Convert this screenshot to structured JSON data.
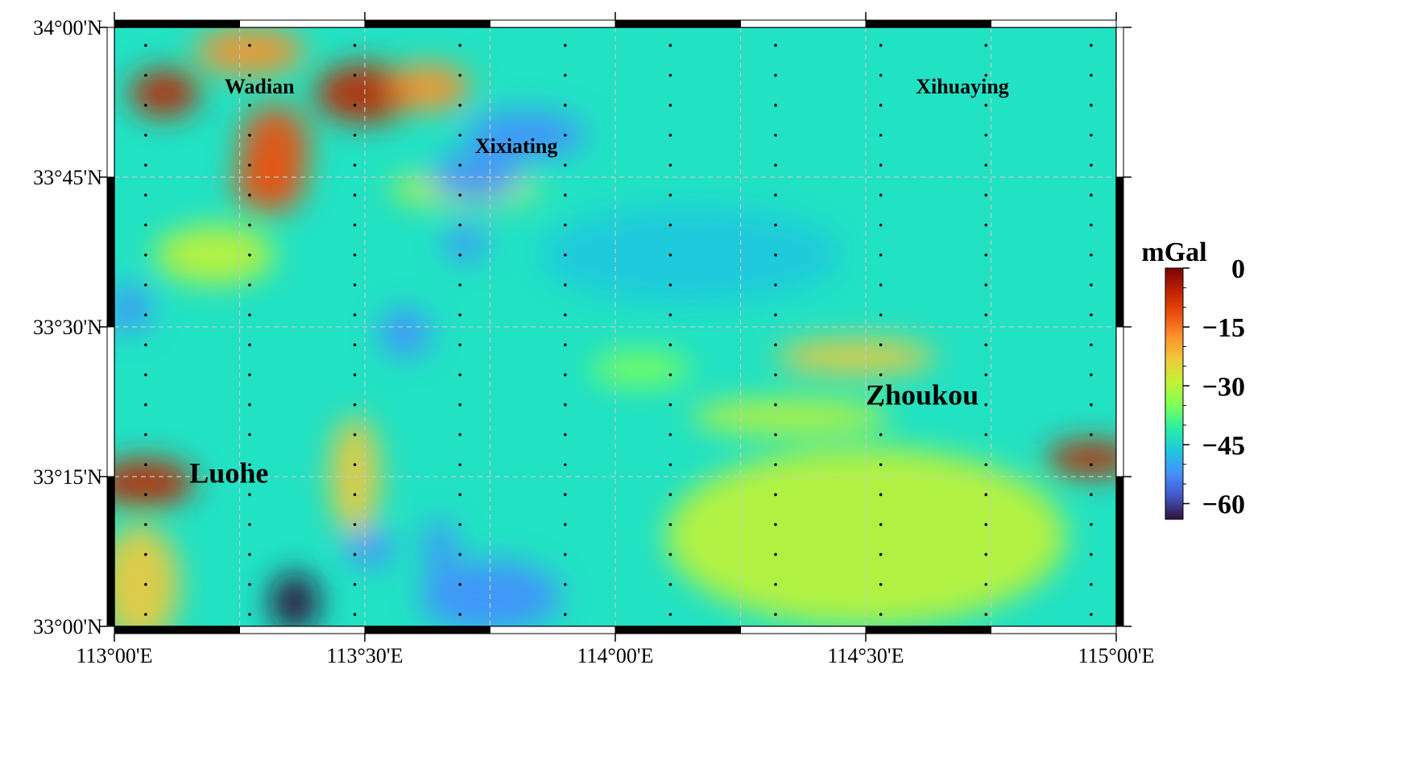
{
  "map": {
    "lon_range": [
      113.0,
      115.0
    ],
    "lat_range": [
      33.0,
      34.0
    ],
    "x_ticks": [
      {
        "lon": 113.0,
        "label": "113°00'E"
      },
      {
        "lon": 113.5,
        "label": "113°30'E"
      },
      {
        "lon": 114.0,
        "label": "114°00'E"
      },
      {
        "lon": 114.5,
        "label": "114°30'E"
      },
      {
        "lon": 115.0,
        "label": "115°00'E"
      }
    ],
    "y_ticks": [
      {
        "lat": 33.0,
        "label": "33°00'N"
      },
      {
        "lat": 33.25,
        "label": "33°15'N"
      },
      {
        "lat": 33.5,
        "label": "33°30'N"
      },
      {
        "lat": 33.75,
        "label": "33°45'N"
      },
      {
        "lat": 34.0,
        "label": "34°00'N"
      }
    ],
    "gridlines": true,
    "station_lons": [
      113.0625,
      113.27,
      113.48,
      113.69,
      113.9,
      114.11,
      114.32,
      114.53,
      114.74,
      114.95
    ],
    "station_lats": [
      33.02,
      33.07,
      33.12,
      33.17,
      33.22,
      33.27,
      33.32,
      33.37,
      33.42,
      33.47,
      33.52,
      33.57,
      33.62,
      33.67,
      33.72,
      33.77,
      33.82,
      33.87,
      33.92,
      33.97
    ]
  },
  "places": [
    {
      "name": "Wadian",
      "lon": 113.22,
      "lat": 33.89,
      "size": "small"
    },
    {
      "name": "Xixiating",
      "lon": 113.72,
      "lat": 33.79,
      "size": "small"
    },
    {
      "name": "Xihuaying",
      "lon": 114.6,
      "lat": 33.89,
      "size": "small"
    },
    {
      "name": "Zhoukou",
      "lon": 114.5,
      "lat": 33.37,
      "size": "large"
    },
    {
      "name": "Luohe",
      "lon": 113.15,
      "lat": 33.24,
      "size": "large"
    }
  ],
  "anomalies": [
    {
      "lon": 113.1,
      "lat": 33.89,
      "rlon": 0.07,
      "rlat": 0.04,
      "value": -8
    },
    {
      "lon": 113.27,
      "lat": 33.96,
      "rlon": 0.11,
      "rlat": 0.04,
      "value": -20
    },
    {
      "lon": 113.32,
      "lat": 33.8,
      "rlon": 0.07,
      "rlat": 0.07,
      "value": -10
    },
    {
      "lon": 113.31,
      "lat": 33.74,
      "rlon": 0.07,
      "rlat": 0.05,
      "value": -14
    },
    {
      "lon": 113.5,
      "lat": 33.89,
      "rlon": 0.1,
      "rlat": 0.05,
      "value": -6
    },
    {
      "lon": 113.63,
      "lat": 33.9,
      "rlon": 0.08,
      "rlat": 0.04,
      "value": -20
    },
    {
      "lon": 113.7,
      "lat": 33.73,
      "rlon": 0.15,
      "rlat": 0.03,
      "value": -28
    },
    {
      "lon": 113.2,
      "lat": 33.62,
      "rlon": 0.12,
      "rlat": 0.05,
      "value": -28
    },
    {
      "lon": 113.72,
      "lat": 33.75,
      "rlon": 0.09,
      "rlat": 0.04,
      "value": -55
    },
    {
      "lon": 113.82,
      "lat": 33.82,
      "rlon": 0.12,
      "rlat": 0.04,
      "value": -50
    },
    {
      "lon": 113.7,
      "lat": 33.64,
      "rlon": 0.04,
      "rlat": 0.03,
      "value": -55
    },
    {
      "lon": 113.58,
      "lat": 33.49,
      "rlon": 0.05,
      "rlat": 0.04,
      "value": -53
    },
    {
      "lon": 113.03,
      "lat": 33.53,
      "rlon": 0.04,
      "rlat": 0.04,
      "value": -50
    },
    {
      "lon": 113.06,
      "lat": 33.24,
      "rlon": 0.1,
      "rlat": 0.04,
      "value": -4
    },
    {
      "lon": 113.05,
      "lat": 33.07,
      "rlon": 0.08,
      "rlat": 0.1,
      "value": -24
    },
    {
      "lon": 113.48,
      "lat": 33.25,
      "rlon": 0.05,
      "rlat": 0.1,
      "value": -23
    },
    {
      "lon": 113.36,
      "lat": 33.04,
      "rlon": 0.05,
      "rlat": 0.05,
      "value": -62
    },
    {
      "lon": 113.51,
      "lat": 33.13,
      "rlon": 0.05,
      "rlat": 0.03,
      "value": -55
    },
    {
      "lon": 113.65,
      "lat": 33.13,
      "rlon": 0.03,
      "rlat": 0.05,
      "value": -55
    },
    {
      "lon": 113.75,
      "lat": 33.05,
      "rlon": 0.14,
      "rlat": 0.06,
      "value": -54
    },
    {
      "lon": 114.48,
      "lat": 33.45,
      "rlon": 0.16,
      "rlat": 0.03,
      "value": -22
    },
    {
      "lon": 114.35,
      "lat": 33.35,
      "rlon": 0.2,
      "rlat": 0.03,
      "value": -30
    },
    {
      "lon": 114.5,
      "lat": 33.15,
      "rlon": 0.4,
      "rlat": 0.15,
      "value": -32
    },
    {
      "lon": 114.95,
      "lat": 33.28,
      "rlon": 0.09,
      "rlat": 0.03,
      "value": -6
    },
    {
      "lon": 114.05,
      "lat": 33.43,
      "rlon": 0.1,
      "rlat": 0.03,
      "value": -37
    },
    {
      "lon": 114.15,
      "lat": 33.62,
      "rlon": 0.3,
      "rlat": 0.08,
      "value": -48
    }
  ],
  "colorbar": {
    "title": "mGal",
    "min": -64,
    "max": 0,
    "tick_values": [
      0,
      -15,
      -30,
      -45,
      -60
    ],
    "tick_labels": [
      "0",
      "−15",
      "−30",
      "−45",
      "−60"
    ]
  },
  "colors": {
    "ramp": [
      "#30123b",
      "#4454c4",
      "#4490fe",
      "#1fc8de",
      "#29efa2",
      "#7dff56",
      "#c1f334",
      "#f1ca3a",
      "#fe922a",
      "#ea4f0d",
      "#be2102",
      "#7a0403"
    ],
    "background": "#22e2c4",
    "grid": "#c8c8c8",
    "frame": "#000000"
  }
}
